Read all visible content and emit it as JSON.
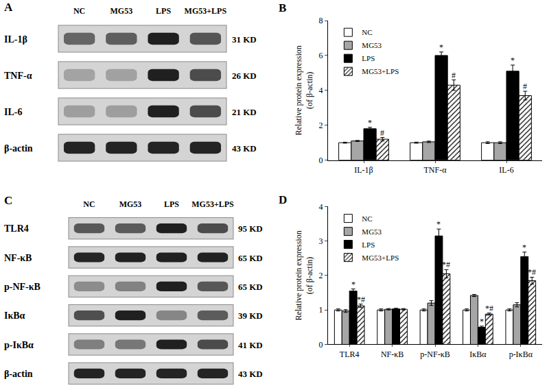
{
  "chart_data": [
    {
      "type": "bar",
      "panel": "B",
      "ylabel": "Relative protein expression\n(of β-actin)",
      "categories": [
        "IL-1β",
        "TNF-α",
        "IL-6"
      ],
      "ylim": [
        0,
        8
      ],
      "yticks": [
        0,
        2,
        4,
        6,
        8
      ],
      "grid": false,
      "legend": "upper left",
      "series": [
        {
          "name": "NC",
          "color": "#ffffff",
          "values": [
            1,
            1,
            1
          ],
          "errors": [
            0.03,
            0.03,
            0.05
          ]
        },
        {
          "name": "MG53",
          "color": "#a6a6a6",
          "values": [
            1.1,
            1.05,
            1.0
          ],
          "errors": [
            0.03,
            0.04,
            0.05
          ]
        },
        {
          "name": "LPS",
          "color": "#000000",
          "values": [
            1.8,
            6.0,
            5.1
          ],
          "errors": [
            0.08,
            0.2,
            0.35
          ],
          "marks": [
            "*",
            "*",
            "*"
          ]
        },
        {
          "name": "MG53+LPS",
          "color": "#ffffff",
          "marker": "hatch",
          "values": [
            1.2,
            4.3,
            3.7
          ],
          "errors": [
            0.1,
            0.3,
            0.25
          ],
          "marks": [
            "#",
            "#",
            "#"
          ]
        }
      ]
    },
    {
      "type": "bar",
      "panel": "D",
      "ylabel": "Relative protein expression\n(of β-actin)",
      "categories": [
        "TLR4",
        "NF-κB",
        "p-NF-κB",
        "IκBα",
        "p-IκBα"
      ],
      "ylim": [
        0,
        4
      ],
      "yticks": [
        0,
        1,
        2,
        3,
        4
      ],
      "grid": false,
      "legend": "upper left",
      "series": [
        {
          "name": "NC",
          "color": "#ffffff",
          "values": [
            1,
            1,
            1,
            1,
            1
          ],
          "errors": [
            0.03,
            0.03,
            0.03,
            0.03,
            0.03
          ]
        },
        {
          "name": "MG53",
          "color": "#a6a6a6",
          "values": [
            0.97,
            1.02,
            1.2,
            1.42,
            1.15
          ],
          "errors": [
            0.04,
            0.02,
            0.07,
            0.03,
            0.06
          ]
        },
        {
          "name": "LPS",
          "color": "#000000",
          "values": [
            1.55,
            1.03,
            3.15,
            0.5,
            2.55
          ],
          "errors": [
            0.06,
            0.02,
            0.2,
            0.03,
            0.13
          ],
          "marks": [
            "*",
            null,
            "*",
            "*",
            "*"
          ]
        },
        {
          "name": "MG53+LPS",
          "color": "#ffffff",
          "marker": "hatch",
          "values": [
            1.12,
            1.02,
            2.05,
            0.88,
            1.85
          ],
          "errors": [
            0.05,
            0.02,
            0.12,
            0.03,
            0.1
          ],
          "marks": [
            "*#",
            null,
            "*#",
            "*#",
            "*#"
          ]
        }
      ]
    }
  ],
  "blots": [
    {
      "panel": "A",
      "lanes": [
        "NC",
        "MG53",
        "LPS",
        "MG53+LPS"
      ],
      "rows": [
        {
          "name": "IL-1β",
          "size": "31 KD"
        },
        {
          "name": "TNF-α",
          "size": "26 KD"
        },
        {
          "name": "IL-6",
          "size": "21 KD"
        },
        {
          "name": "β-actin",
          "size": "43 KD"
        }
      ]
    },
    {
      "panel": "C",
      "lanes": [
        "NC",
        "MG53",
        "LPS",
        "MG53+LPS"
      ],
      "rows": [
        {
          "name": "TLR4",
          "size": "95 KD"
        },
        {
          "name": "NF-κB",
          "size": "65 KD"
        },
        {
          "name": "p-NF-κB",
          "size": "65 KD"
        },
        {
          "name": "IκBα",
          "size": "39 KD"
        },
        {
          "name": "p-IκBα",
          "size": "41 KD"
        },
        {
          "name": "β-actin",
          "size": "43 KD"
        }
      ]
    }
  ]
}
